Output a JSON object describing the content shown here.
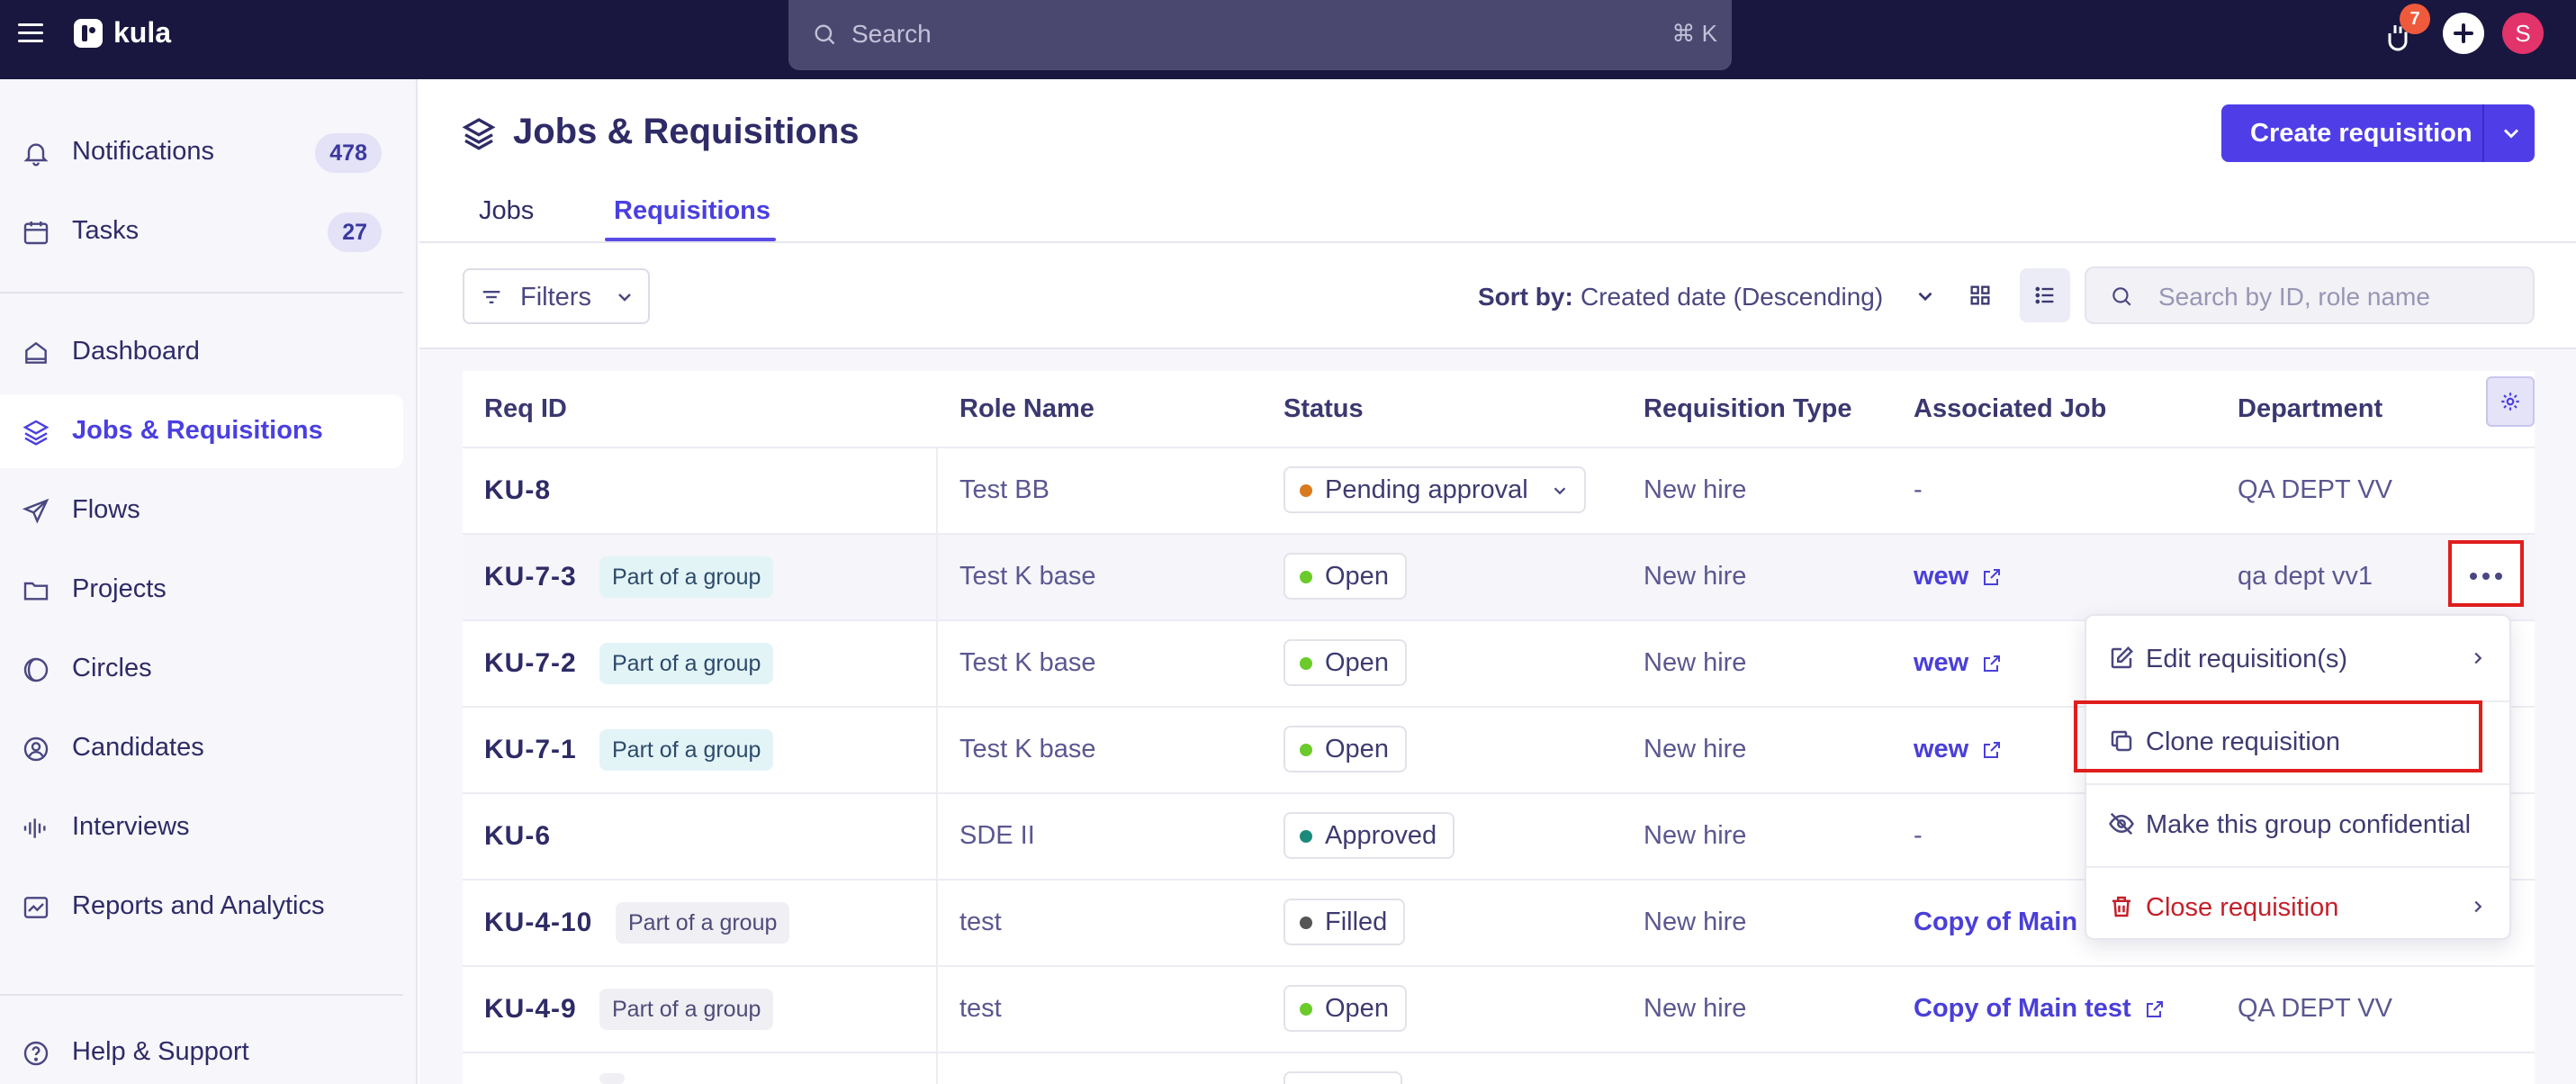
{
  "app": {
    "name": "kula"
  },
  "topbar": {
    "search_placeholder": "Search",
    "search_shortcut": "⌘ K",
    "notifications_badge": "7",
    "avatar_initial": "S"
  },
  "sidebar": {
    "items": [
      {
        "label": "Notifications",
        "count": "478",
        "icon": "bell-icon"
      },
      {
        "label": "Tasks",
        "count": "27",
        "icon": "calendar-icon"
      },
      {
        "label": "Dashboard",
        "icon": "home-icon"
      },
      {
        "label": "Jobs & Requisitions",
        "icon": "layers-icon",
        "active": true
      },
      {
        "label": "Flows",
        "icon": "send-icon"
      },
      {
        "label": "Projects",
        "icon": "folder-icon"
      },
      {
        "label": "Circles",
        "icon": "circles-icon"
      },
      {
        "label": "Candidates",
        "icon": "user-circle-icon"
      },
      {
        "label": "Interviews",
        "icon": "waveform-icon"
      },
      {
        "label": "Reports and Analytics",
        "icon": "chart-icon"
      }
    ],
    "help_label": "Help & Support"
  },
  "header": {
    "title": "Jobs & Requisitions",
    "create_button": "Create requisition",
    "tabs": [
      "Jobs",
      "Requisitions"
    ],
    "active_tab": "Requisitions"
  },
  "toolbar": {
    "filters_label": "Filters",
    "sort_label": "Sort by:",
    "sort_value": "Created date (Descending)",
    "search_placeholder": "Search by ID, role name"
  },
  "table": {
    "columns": [
      "Req ID",
      "Role Name",
      "Status",
      "Requisition Type",
      "Associated Job",
      "Department"
    ],
    "rows": [
      {
        "id": "KU-8",
        "group": "",
        "role": "Test BB",
        "status": "Pending approval",
        "type": "New hire",
        "job": "-",
        "dept": "QA DEPT VV"
      },
      {
        "id": "KU-7-3",
        "group": "Part of a group",
        "role": "Test K base",
        "status": "Open",
        "type": "New hire",
        "job": "wew",
        "dept": "qa dept vv1"
      },
      {
        "id": "KU-7-2",
        "group": "Part of a group",
        "role": "Test K base",
        "status": "Open",
        "type": "New hire",
        "job": "wew",
        "dept": ""
      },
      {
        "id": "KU-7-1",
        "group": "Part of a group",
        "role": "Test K base",
        "status": "Open",
        "type": "New hire",
        "job": "wew",
        "dept": ""
      },
      {
        "id": "KU-6",
        "group": "",
        "role": "SDE II",
        "status": "Approved",
        "type": "New hire",
        "job": "-",
        "dept": ""
      },
      {
        "id": "KU-4-10",
        "group": "Part of a group",
        "role": "test",
        "status": "Filled",
        "type": "New hire",
        "job": "Copy of Main",
        "dept": ""
      },
      {
        "id": "KU-4-9",
        "group": "Part of a group",
        "role": "test",
        "status": "Open",
        "type": "New hire",
        "job": "Copy of Main test",
        "dept": "QA DEPT VV"
      }
    ]
  },
  "menu": {
    "items": [
      "Edit requisition(s)",
      "Clone requisition",
      "Make this group confidential",
      "Close requisition"
    ]
  },
  "colors": {
    "topbar": "#19173f",
    "primary": "#4f3ee8",
    "status_pending": "#d97a1e",
    "status_open": "#6acb2b",
    "status_approved": "#1b8a7a",
    "status_filled": "#555555",
    "danger": "#c4202a"
  }
}
